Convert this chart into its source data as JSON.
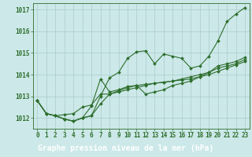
{
  "title": "Graphe pression niveau de la mer (hPa)",
  "background_color": "#cce8e8",
  "grid_color": "#aacccc",
  "line_color": "#2d6e2d",
  "marker_color": "#2d6e2d",
  "label_bg_color": "#2d6e2d",
  "label_text_color": "#ffffff",
  "ylim": [
    1011.5,
    1017.3
  ],
  "yticks": [
    1012,
    1013,
    1014,
    1015,
    1016,
    1017
  ],
  "xlim": [
    -0.5,
    23.5
  ],
  "xticks": [
    0,
    1,
    2,
    3,
    4,
    5,
    6,
    7,
    8,
    9,
    10,
    11,
    12,
    13,
    14,
    15,
    16,
    17,
    18,
    19,
    20,
    21,
    22,
    23
  ],
  "series": [
    [
      1012.8,
      1012.2,
      1012.1,
      1011.95,
      1011.85,
      1012.0,
      1012.1,
      1013.0,
      1013.85,
      1014.1,
      1014.75,
      1015.05,
      1015.1,
      1014.5,
      1014.95,
      1014.85,
      1014.75,
      1014.3,
      1014.4,
      1014.85,
      1015.55,
      1016.45,
      1016.8,
      1017.1
    ],
    [
      1012.8,
      1012.2,
      1012.1,
      1011.95,
      1011.85,
      1012.0,
      1012.55,
      1013.8,
      1013.2,
      1013.3,
      1013.45,
      1013.5,
      1013.1,
      1013.2,
      1013.3,
      1013.5,
      1013.6,
      1013.7,
      1013.9,
      1014.1,
      1014.4,
      1014.5,
      1014.6,
      1014.8
    ],
    [
      1012.8,
      1012.2,
      1012.1,
      1012.15,
      1012.2,
      1012.5,
      1012.6,
      1013.1,
      1013.1,
      1013.2,
      1013.3,
      1013.4,
      1013.5,
      1013.6,
      1013.65,
      1013.7,
      1013.8,
      1013.9,
      1014.0,
      1014.1,
      1014.3,
      1014.4,
      1014.5,
      1014.7
    ],
    [
      1012.8,
      1012.2,
      1012.1,
      1011.95,
      1011.85,
      1012.0,
      1012.1,
      1012.65,
      1013.1,
      1013.25,
      1013.4,
      1013.5,
      1013.55,
      1013.6,
      1013.65,
      1013.7,
      1013.75,
      1013.8,
      1013.9,
      1014.0,
      1014.15,
      1014.3,
      1014.45,
      1014.6
    ]
  ],
  "tick_fontsize": 5.5,
  "label_fontsize": 7.0
}
